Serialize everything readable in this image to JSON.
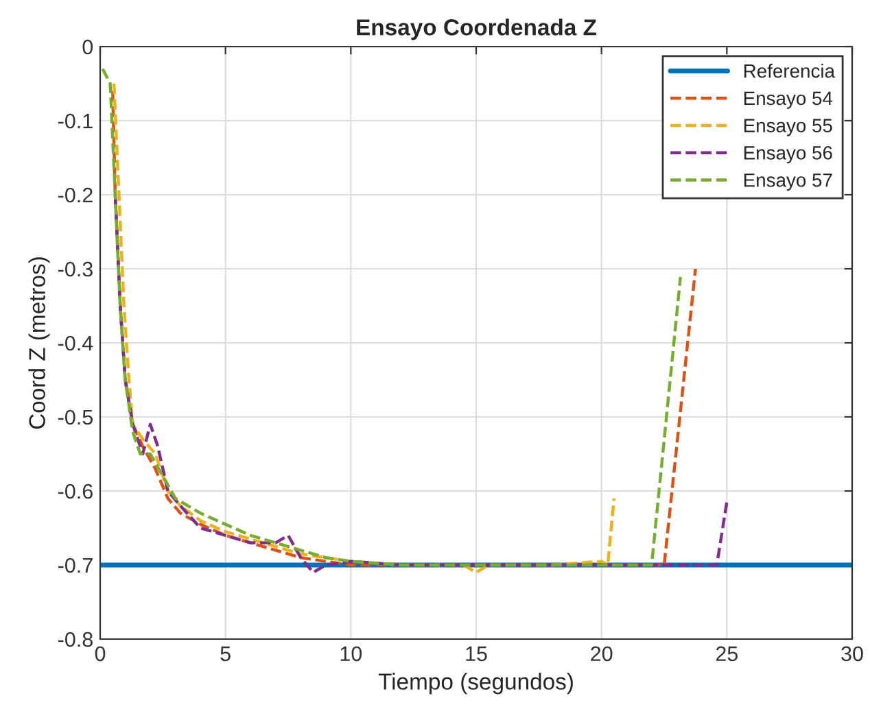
{
  "chart_data": {
    "type": "line",
    "title": "Ensayo Coordenada Z",
    "xlabel": "Tiempo (segundos)",
    "ylabel": "Coord Z (metros)",
    "xlim": [
      0,
      30
    ],
    "ylim": [
      -0.8,
      0
    ],
    "xticks": [
      0,
      5,
      10,
      15,
      20,
      25,
      30
    ],
    "yticks": [
      -0.8,
      -0.7,
      -0.6,
      -0.5,
      -0.4,
      -0.3,
      -0.2,
      -0.1,
      0
    ],
    "grid": true,
    "legend": "top right",
    "series": [
      {
        "name": "Referencia",
        "color": "#0072bd",
        "line_style": "solid",
        "x": [
          0,
          30
        ],
        "values": [
          -0.7,
          -0.7
        ]
      },
      {
        "name": "Ensayo 54",
        "color": "#d95319",
        "line_style": "dashed",
        "x": [
          0.5,
          0.6,
          0.8,
          1.0,
          1.3,
          1.7,
          2.2,
          2.7,
          3.2,
          4.0,
          5.0,
          6.0,
          7.0,
          8.0,
          9.0,
          10.0,
          12.0,
          15.0,
          18.0,
          20.0,
          22.5,
          23.75
        ],
        "values": [
          -0.06,
          -0.2,
          -0.35,
          -0.45,
          -0.51,
          -0.54,
          -0.57,
          -0.61,
          -0.63,
          -0.645,
          -0.66,
          -0.67,
          -0.68,
          -0.69,
          -0.695,
          -0.7,
          -0.7,
          -0.7,
          -0.7,
          -0.7,
          -0.7,
          -0.3
        ]
      },
      {
        "name": "Ensayo 55",
        "color": "#edb120",
        "line_style": "dashed",
        "x": [
          0.55,
          0.75,
          0.95,
          1.15,
          1.3,
          1.7,
          2.2,
          2.7,
          3.2,
          4.0,
          5.0,
          6.0,
          7.0,
          8.0,
          9.0,
          10.0,
          12.0,
          14.5,
          15.0,
          15.5,
          18.0,
          20.0,
          20.25,
          20.5
        ],
        "values": [
          -0.05,
          -0.2,
          -0.35,
          -0.45,
          -0.51,
          -0.53,
          -0.55,
          -0.6,
          -0.62,
          -0.64,
          -0.655,
          -0.665,
          -0.675,
          -0.685,
          -0.69,
          -0.695,
          -0.7,
          -0.7,
          -0.71,
          -0.7,
          -0.7,
          -0.695,
          -0.7,
          -0.61
        ]
      },
      {
        "name": "Ensayo 56",
        "color": "#7e2f8e",
        "line_style": "dashed",
        "x": [
          0.6,
          0.8,
          1.0,
          1.3,
          1.7,
          2.0,
          2.3,
          2.7,
          3.2,
          4.0,
          5.0,
          6.0,
          7.0,
          7.5,
          8.0,
          8.5,
          9.0,
          10.0,
          12.0,
          15.0,
          18.0,
          20.0,
          22.0,
          24.6,
          25.0
        ],
        "values": [
          -0.2,
          -0.35,
          -0.45,
          -0.51,
          -0.55,
          -0.51,
          -0.54,
          -0.6,
          -0.62,
          -0.65,
          -0.66,
          -0.67,
          -0.67,
          -0.66,
          -0.69,
          -0.71,
          -0.7,
          -0.695,
          -0.7,
          -0.7,
          -0.7,
          -0.7,
          -0.7,
          -0.7,
          -0.615
        ]
      },
      {
        "name": "Ensayo 57",
        "color": "#77ac30",
        "line_style": "dashed",
        "x": [
          0.1,
          0.4,
          0.6,
          0.8,
          1.0,
          1.3,
          1.6,
          2.0,
          2.5,
          3.0,
          3.5,
          4.0,
          5.0,
          6.0,
          7.0,
          8.0,
          9.0,
          10.0,
          12.0,
          15.0,
          18.0,
          20.0,
          22.0,
          23.15
        ],
        "values": [
          -0.03,
          -0.05,
          -0.2,
          -0.35,
          -0.45,
          -0.52,
          -0.55,
          -0.55,
          -0.58,
          -0.61,
          -0.62,
          -0.63,
          -0.645,
          -0.66,
          -0.67,
          -0.68,
          -0.69,
          -0.695,
          -0.7,
          -0.7,
          -0.7,
          -0.7,
          -0.7,
          -0.311
        ]
      }
    ]
  }
}
